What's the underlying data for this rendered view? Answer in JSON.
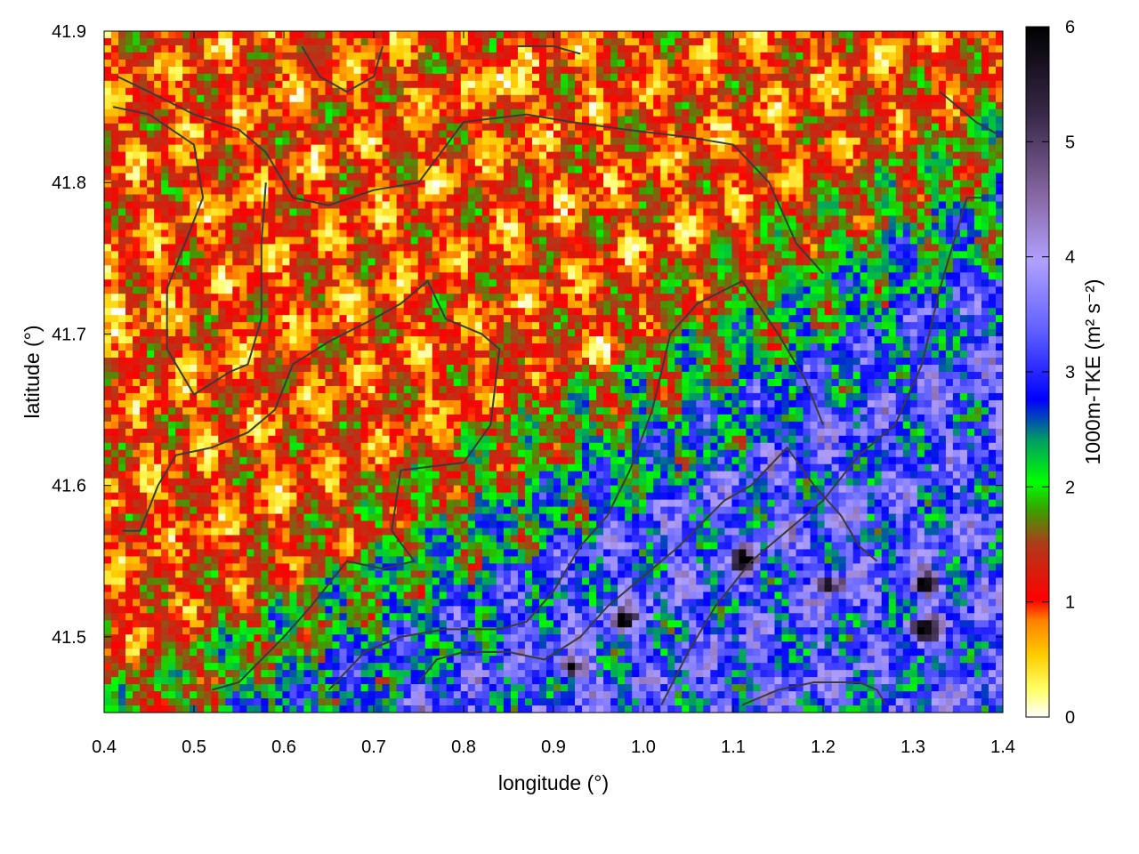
{
  "chart_data": {
    "type": "heatmap",
    "title": "",
    "xlabel": "longitude (°)",
    "ylabel": "latitude (°)",
    "xlim": [
      0.4,
      1.4
    ],
    "ylim": [
      41.45,
      41.9
    ],
    "xticks": [
      "0.4",
      "0.5",
      "0.6",
      "0.7",
      "0.8",
      "0.9",
      "1.0",
      "1.1",
      "1.2",
      "1.3",
      "1.4"
    ],
    "yticks": [
      "41.5",
      "41.6",
      "41.7",
      "41.8",
      "41.9"
    ],
    "colorbar": {
      "label": "1000m-TKE (m² s⁻²)",
      "range": [
        0,
        6
      ],
      "ticks": [
        "0",
        "1",
        "2",
        "3",
        "4",
        "5",
        "6"
      ],
      "colors": [
        "#ffffff",
        "#ffff00",
        "#ff8000",
        "#ff0000",
        "#8b5a2b",
        "#00cc00",
        "#00ff00",
        "#0000ff",
        "#4040ff",
        "#b0a0ff",
        "#8a6aa8",
        "#3a2a4a",
        "#000000"
      ]
    },
    "data_grid_description": {
      "lon_range": [
        0.4,
        1.4
      ],
      "lat_range": [
        41.45,
        41.9
      ],
      "regions": [
        {
          "area": "west and center",
          "typical_tke": 1.0,
          "min": 0.3,
          "max": 1.9
        },
        {
          "area": "south-east",
          "typical_tke": 3.2,
          "min": 1.5,
          "max": 5.9
        }
      ],
      "peaks": [
        {
          "lon": 0.918,
          "lat": 41.48,
          "tke": 5.8
        },
        {
          "lon": 0.975,
          "lat": 41.51,
          "tke": 5.7
        },
        {
          "lon": 1.115,
          "lat": 41.55,
          "tke": 5.6
        },
        {
          "lon": 1.21,
          "lat": 41.535,
          "tke": 5.5
        },
        {
          "lon": 1.315,
          "lat": 41.535,
          "tke": 5.8
        },
        {
          "lon": 1.31,
          "lat": 41.505,
          "tke": 5.6
        }
      ],
      "low_spots": [
        {
          "lon": 0.845,
          "lat": 41.865,
          "tke": 0.1
        },
        {
          "lon": 0.955,
          "lat": 41.69,
          "tke": 0.1
        },
        {
          "lon": 0.405,
          "lat": 41.72,
          "tke": 0.4
        }
      ]
    },
    "contour_lines": [
      [
        [
          0.415,
          41.87
        ],
        [
          0.45,
          41.86
        ],
        [
          0.5,
          41.845
        ],
        [
          0.55,
          41.835
        ],
        [
          0.58,
          41.82
        ],
        [
          0.61,
          41.79
        ],
        [
          0.65,
          41.785
        ],
        [
          0.7,
          41.795
        ],
        [
          0.75,
          41.8
        ],
        [
          0.8,
          41.84
        ],
        [
          0.87,
          41.845
        ],
        [
          0.92,
          41.84
        ],
        [
          0.98,
          41.835
        ],
        [
          1.05,
          41.83
        ],
        [
          1.1,
          41.825
        ],
        [
          1.14,
          41.8
        ],
        [
          1.17,
          41.76
        ],
        [
          1.2,
          41.74
        ]
      ],
      [
        [
          0.41,
          41.85
        ],
        [
          0.45,
          41.845
        ],
        [
          0.5,
          41.825
        ],
        [
          0.51,
          41.79
        ],
        [
          0.49,
          41.76
        ],
        [
          0.47,
          41.73
        ],
        [
          0.47,
          41.69
        ],
        [
          0.5,
          41.66
        ],
        [
          0.54,
          41.675
        ],
        [
          0.56,
          41.68
        ],
        [
          0.575,
          41.71
        ],
        [
          0.575,
          41.76
        ],
        [
          0.58,
          41.8
        ]
      ],
      [
        [
          0.42,
          41.57
        ],
        [
          0.44,
          41.57
        ],
        [
          0.46,
          41.6
        ],
        [
          0.48,
          41.62
        ],
        [
          0.52,
          41.625
        ],
        [
          0.56,
          41.635
        ],
        [
          0.59,
          41.65
        ],
        [
          0.61,
          41.68
        ],
        [
          0.65,
          41.695
        ],
        [
          0.7,
          41.71
        ],
        [
          0.73,
          41.72
        ],
        [
          0.76,
          41.735
        ],
        [
          0.78,
          41.71
        ],
        [
          0.82,
          41.7
        ],
        [
          0.84,
          41.69
        ],
        [
          0.83,
          41.64
        ],
        [
          0.8,
          41.615
        ],
        [
          0.73,
          41.61
        ],
        [
          0.72,
          41.57
        ],
        [
          0.745,
          41.55
        ],
        [
          0.71,
          41.545
        ],
        [
          0.67,
          41.55
        ],
        [
          0.63,
          41.52
        ],
        [
          0.6,
          41.5
        ],
        [
          0.55,
          41.47
        ],
        [
          0.52,
          41.465
        ]
      ],
      [
        [
          0.65,
          41.465
        ],
        [
          0.69,
          41.49
        ],
        [
          0.73,
          41.5
        ],
        [
          0.78,
          41.505
        ],
        [
          0.84,
          41.505
        ],
        [
          0.87,
          41.51
        ],
        [
          0.9,
          41.53
        ],
        [
          0.93,
          41.56
        ],
        [
          0.96,
          41.58
        ],
        [
          0.985,
          41.61
        ],
        [
          1.01,
          41.65
        ],
        [
          1.03,
          41.7
        ],
        [
          1.06,
          41.72
        ],
        [
          1.11,
          41.735
        ],
        [
          1.15,
          41.7
        ],
        [
          1.18,
          41.67
        ],
        [
          1.2,
          41.64
        ]
      ],
      [
        [
          0.75,
          41.47
        ],
        [
          0.77,
          41.485
        ],
        [
          0.8,
          41.49
        ],
        [
          0.85,
          41.49
        ],
        [
          0.89,
          41.485
        ],
        [
          0.93,
          41.5
        ],
        [
          0.96,
          41.52
        ],
        [
          1.0,
          41.54
        ],
        [
          1.04,
          41.56
        ],
        [
          1.09,
          41.59
        ],
        [
          1.12,
          41.6
        ],
        [
          1.16,
          41.625
        ],
        [
          1.19,
          41.6
        ],
        [
          1.22,
          41.58
        ],
        [
          1.24,
          41.56
        ],
        [
          1.26,
          41.55
        ]
      ],
      [
        [
          1.02,
          41.455
        ],
        [
          1.05,
          41.49
        ],
        [
          1.08,
          41.52
        ],
        [
          1.12,
          41.55
        ],
        [
          1.16,
          41.57
        ],
        [
          1.2,
          41.59
        ],
        [
          1.24,
          41.62
        ],
        [
          1.28,
          41.64
        ],
        [
          1.31,
          41.68
        ],
        [
          1.33,
          41.73
        ],
        [
          1.35,
          41.77
        ],
        [
          1.36,
          41.79
        ],
        [
          1.38,
          41.79
        ]
      ],
      [
        [
          1.11,
          41.455
        ],
        [
          1.15,
          41.465
        ],
        [
          1.19,
          41.47
        ],
        [
          1.24,
          41.47
        ],
        [
          1.26,
          41.465
        ],
        [
          1.27,
          41.455
        ]
      ],
      [
        [
          0.62,
          41.89
        ],
        [
          0.64,
          41.87
        ],
        [
          0.67,
          41.86
        ],
        [
          0.7,
          41.87
        ],
        [
          0.71,
          41.89
        ]
      ],
      [
        [
          0.86,
          41.89
        ],
        [
          0.9,
          41.89
        ],
        [
          0.93,
          41.885
        ]
      ],
      [
        [
          1.33,
          41.86
        ],
        [
          1.37,
          41.84
        ],
        [
          1.4,
          41.83
        ]
      ]
    ]
  }
}
